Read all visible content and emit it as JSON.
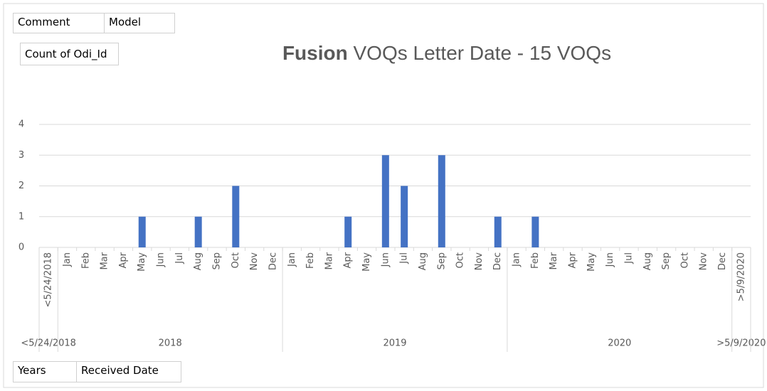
{
  "chart_data": {
    "type": "bar",
    "title_bold": "Fusion",
    "title": "VOQs Letter Date - 15 VOQs",
    "field_buttons": {
      "filters": [
        "Comment",
        "Model"
      ],
      "values": [
        "Count of Odi_Id"
      ],
      "axis": [
        "Years",
        "Received Date"
      ]
    },
    "groups": [
      {
        "label": "<5/24/2018",
        "categories": [
          "<5/24/2018"
        ],
        "values": [
          0
        ]
      },
      {
        "label": "2018",
        "categories": [
          "Jan",
          "Feb",
          "Mar",
          "Apr",
          "May",
          "Jun",
          "Jul",
          "Aug",
          "Sep",
          "Oct",
          "Nov",
          "Dec"
        ],
        "values": [
          0,
          0,
          0,
          0,
          1,
          0,
          0,
          1,
          0,
          2,
          0,
          0
        ]
      },
      {
        "label": "2019",
        "categories": [
          "Jan",
          "Feb",
          "Mar",
          "Apr",
          "May",
          "Jun",
          "Jul",
          "Aug",
          "Sep",
          "Oct",
          "Nov",
          "Dec"
        ],
        "values": [
          0,
          0,
          0,
          1,
          0,
          3,
          2,
          0,
          3,
          0,
          0,
          1
        ]
      },
      {
        "label": "2020",
        "categories": [
          "Jan",
          "Feb",
          "Mar",
          "Apr",
          "May",
          "Jun",
          "Jul",
          "Aug",
          "Sep",
          "Oct",
          "Nov",
          "Dec"
        ],
        "values": [
          0,
          1,
          0,
          0,
          0,
          0,
          0,
          0,
          0,
          0,
          0,
          0
        ]
      },
      {
        "label": ">5/9/2020",
        "categories": [
          ">5/9/2020"
        ],
        "values": [
          0
        ]
      }
    ],
    "color": "#4472c4",
    "ylim": [
      0,
      4
    ],
    "yticks": [
      0,
      1,
      2,
      3,
      4
    ],
    "grid": true
  }
}
